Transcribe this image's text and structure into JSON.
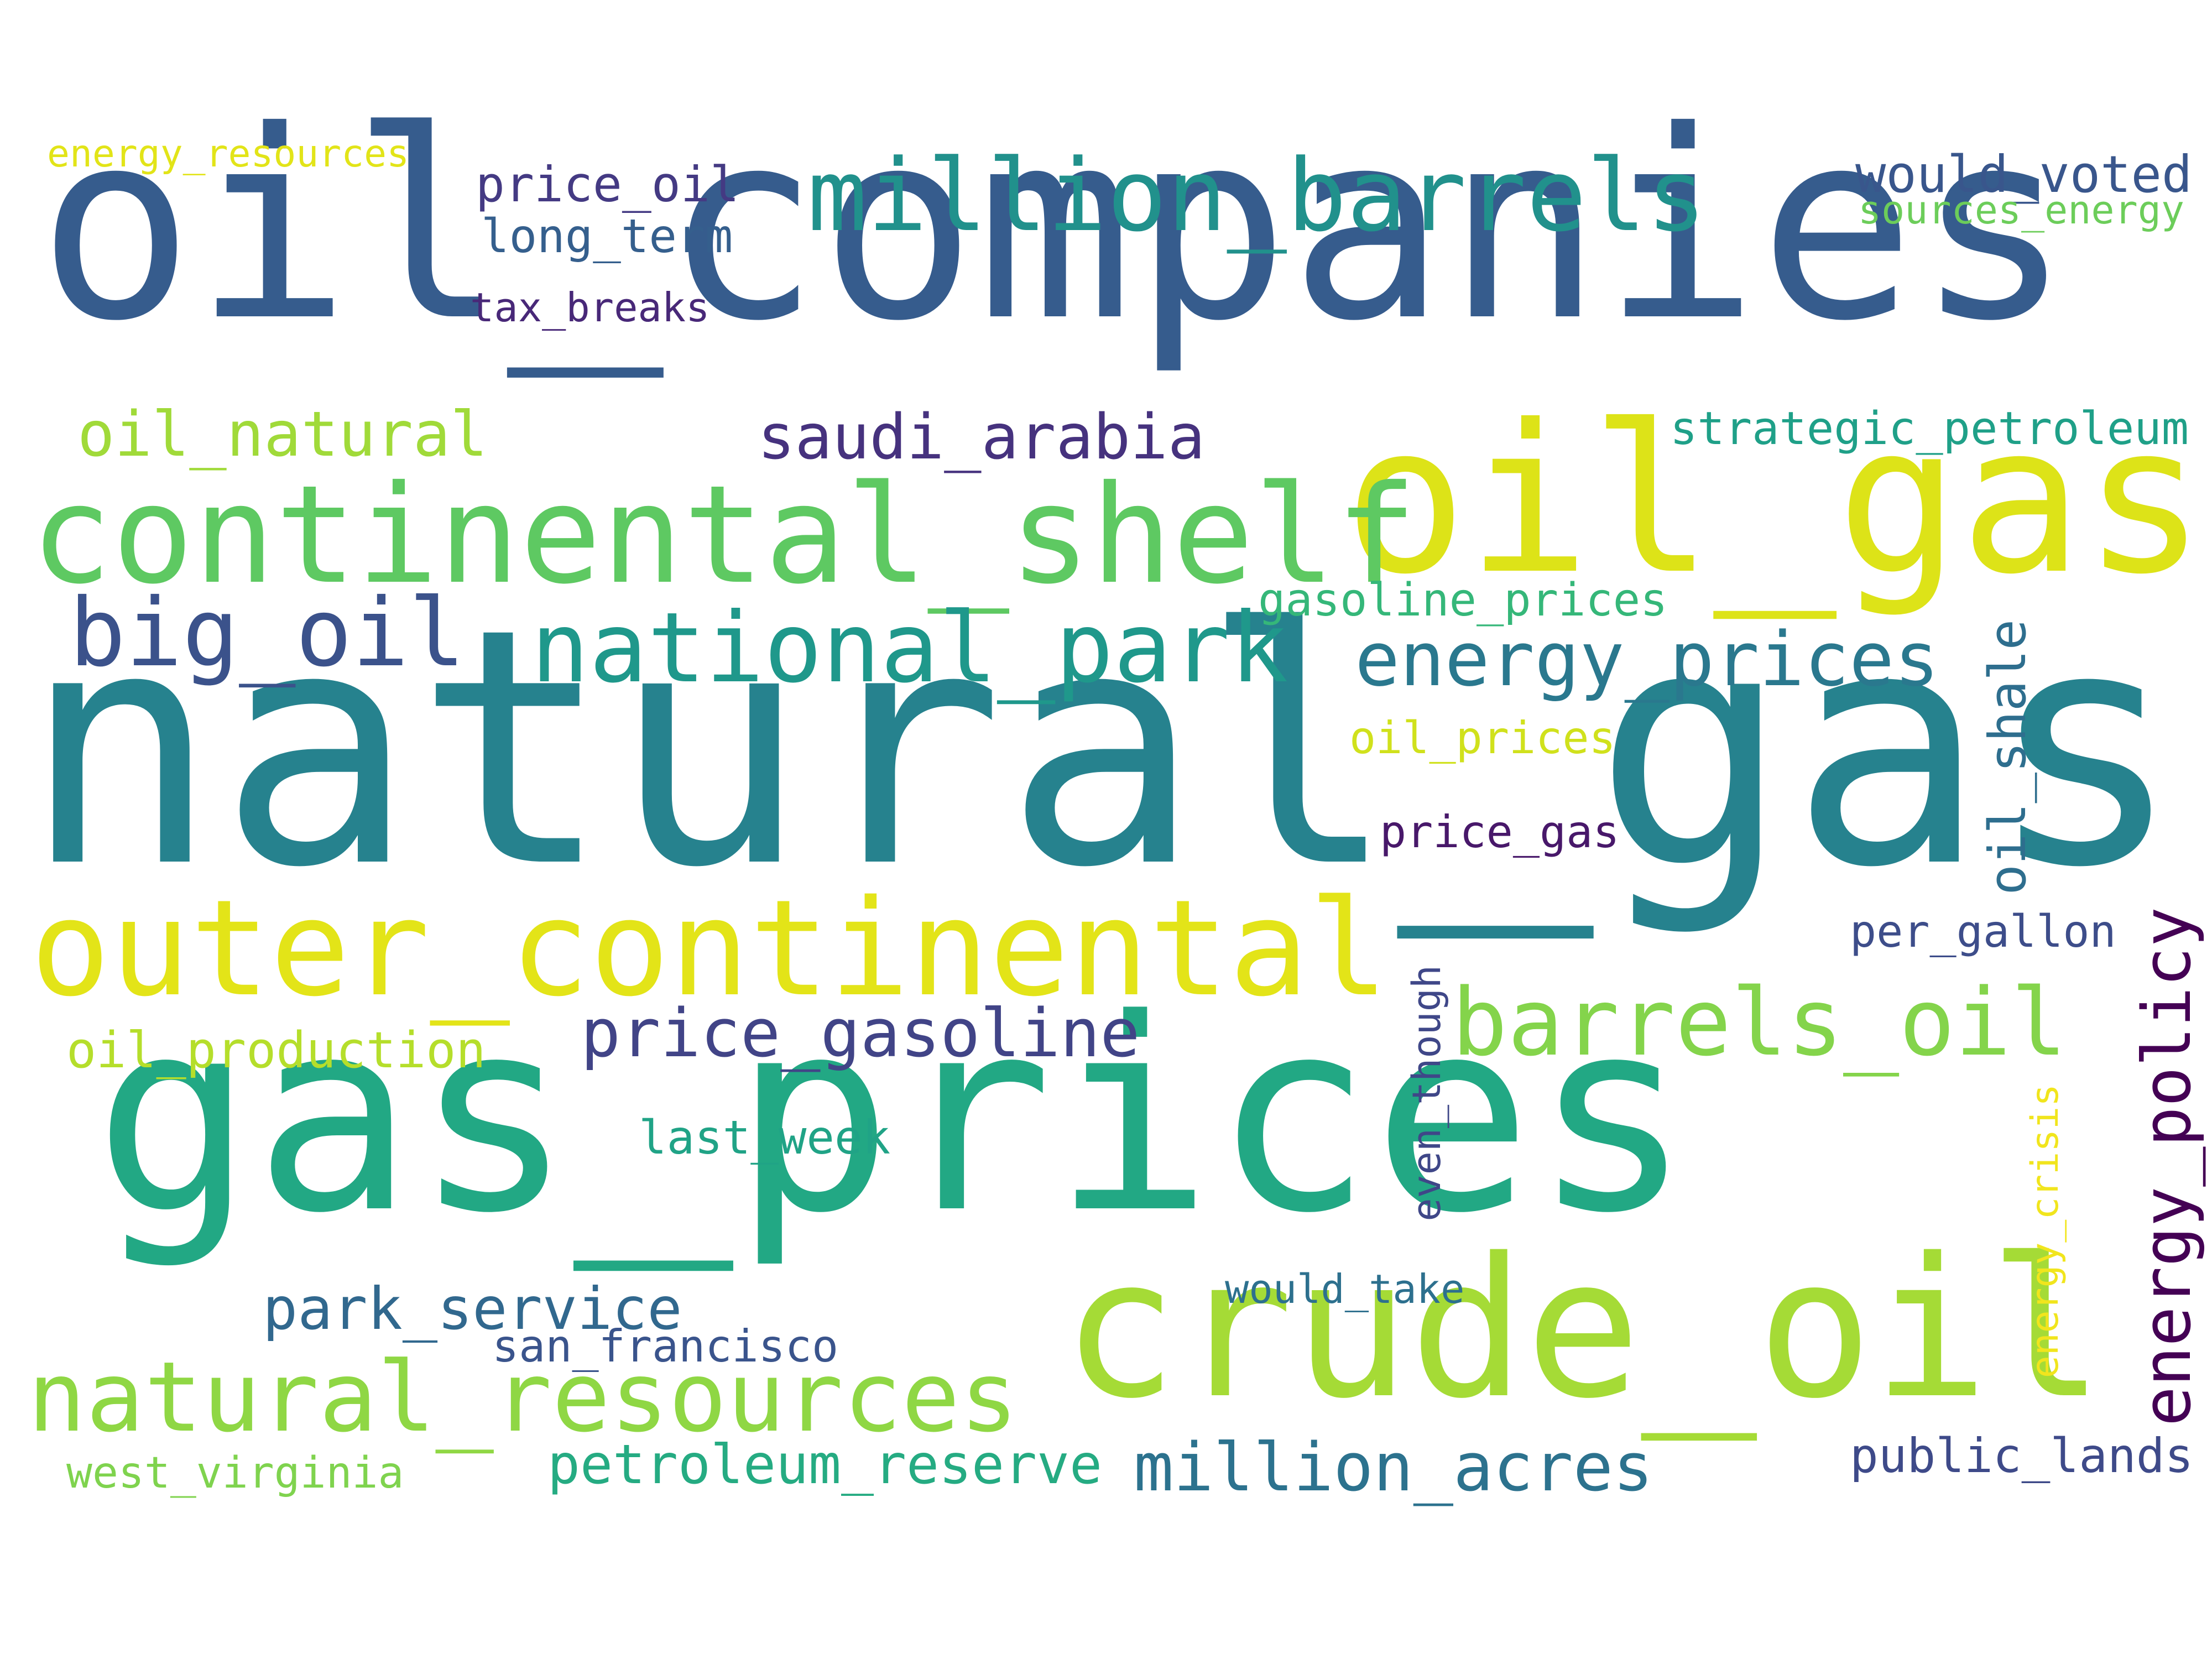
{
  "colors": {
    "background": "#ffffff",
    "viridis_dark_purple": "#440154",
    "viridis_indigo": "#433e85",
    "viridis_blue": "#38598c",
    "viridis_steel": "#2c728e",
    "viridis_teal": "#21918c",
    "viridis_green_teal": "#1fa187",
    "viridis_green": "#3bbb75",
    "viridis_light_green": "#7ad151",
    "viridis_lime": "#a8db34",
    "viridis_yellow": "#dde318"
  },
  "words": [
    {
      "text": "natural_gas",
      "color": "#26828e"
    },
    {
      "text": "oil_companies",
      "color": "#365c8d"
    },
    {
      "text": "gas_prices",
      "color": "#22a884"
    },
    {
      "text": "crude_oil",
      "color": "#a5db36"
    },
    {
      "text": "oil_gas",
      "color": "#dde318"
    },
    {
      "text": "continental_shelf",
      "color": "#5ec962"
    },
    {
      "text": "outer_continental",
      "color": "#e3e418"
    },
    {
      "text": "million_barrels",
      "color": "#21918c"
    },
    {
      "text": "natural_resources",
      "color": "#8fd744"
    },
    {
      "text": "national_park",
      "color": "#1f988b"
    },
    {
      "text": "barrels_oil",
      "color": "#84d44b"
    },
    {
      "text": "big_oil",
      "color": "#3b528b"
    },
    {
      "text": "energy_prices",
      "color": "#2a788e"
    },
    {
      "text": "price_gasoline",
      "color": "#414487"
    },
    {
      "text": "million_acres",
      "color": "#2c728e"
    },
    {
      "text": "energy_policy",
      "color": "#440154"
    },
    {
      "text": "saudi_arabia",
      "color": "#46327e"
    },
    {
      "text": "oil_natural",
      "color": "#a0da39"
    },
    {
      "text": "park_service",
      "color": "#31688e"
    },
    {
      "text": "petroleum_reserve",
      "color": "#25ab82"
    },
    {
      "text": "oil_production",
      "color": "#b5de2b"
    },
    {
      "text": "oil_shale",
      "color": "#2e6e8e"
    },
    {
      "text": "would_voted",
      "color": "#39568c"
    },
    {
      "text": "strategic_petroleum",
      "color": "#1fa088"
    },
    {
      "text": "gasoline_prices",
      "color": "#35b779"
    },
    {
      "text": "public_lands",
      "color": "#3e4a89"
    },
    {
      "text": "last_week",
      "color": "#20a386"
    },
    {
      "text": "san_francisco",
      "color": "#3a548c"
    },
    {
      "text": "west_virginia",
      "color": "#7fd34e"
    },
    {
      "text": "per_gallon",
      "color": "#3d4d8a"
    },
    {
      "text": "price_oil",
      "color": "#443a83"
    },
    {
      "text": "long_term",
      "color": "#355f8d"
    },
    {
      "text": "oil_prices",
      "color": "#d0e11c"
    },
    {
      "text": "price_gas",
      "color": "#48186a"
    },
    {
      "text": "would_take",
      "color": "#2d708e"
    },
    {
      "text": "even_though",
      "color": "#3f4788"
    },
    {
      "text": "tax_breaks",
      "color": "#482878"
    },
    {
      "text": "energy_crisis",
      "color": "#f1e51d"
    },
    {
      "text": "sources_energy",
      "color": "#6ccd5a"
    },
    {
      "text": "energy_resources",
      "color": "#e2e418"
    }
  ]
}
